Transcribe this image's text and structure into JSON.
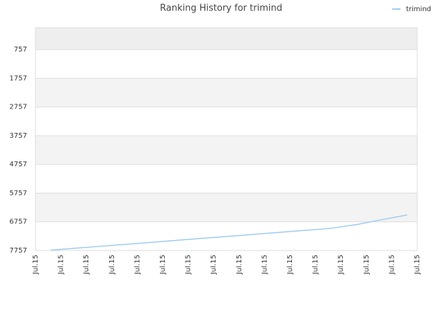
{
  "chart_data": {
    "type": "line",
    "title": "Ranking History for trimind",
    "categories": [
      "Jul.15",
      "Jul.15",
      "Jul.15",
      "Jul.15",
      "Jul.15",
      "Jul.15",
      "Jul.15",
      "Jul.15",
      "Jul.15",
      "Jul.15",
      "Jul.15",
      "Jul.15",
      "Jul.15",
      "Jul.15",
      "Jul.15",
      "Jul.15"
    ],
    "series": [
      {
        "name": "trimind",
        "color": "#9ecbf0",
        "values": [
          7745,
          7676,
          7607,
          7538,
          7469,
          7400,
          7331,
          7262,
          7193,
          7124,
          7055,
          6986,
          6856,
          6686,
          6521,
          null
        ]
      }
    ],
    "ylim": [
      7757,
      1
    ],
    "yticks": [
      757,
      1757,
      2757,
      3757,
      4757,
      5757,
      6757,
      7757
    ],
    "grid": true,
    "legend": "top-right"
  }
}
